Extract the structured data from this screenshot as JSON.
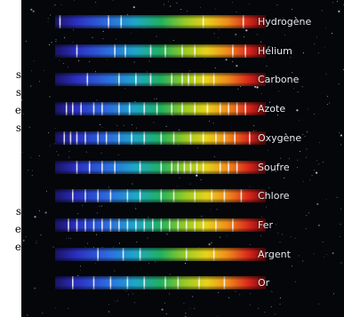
{
  "left_fragments": [
    "s",
    "s",
    "e",
    "s",
    "s",
    "e",
    "e"
  ],
  "spectra": [
    {
      "label": "Hydrogène",
      "lines": [
        0.02,
        0.25,
        0.31,
        0.7,
        0.89
      ]
    },
    {
      "label": "Hélium",
      "lines": [
        0.1,
        0.28,
        0.33,
        0.45,
        0.52,
        0.6,
        0.66,
        0.84,
        0.9
      ]
    },
    {
      "label": "Carbone",
      "lines": [
        0.15,
        0.3,
        0.38,
        0.45,
        0.55,
        0.6,
        0.63,
        0.66,
        0.7,
        0.75
      ]
    },
    {
      "label": "Azote",
      "lines": [
        0.05,
        0.08,
        0.12,
        0.18,
        0.22,
        0.3,
        0.35,
        0.42,
        0.48,
        0.55,
        0.6,
        0.66,
        0.72,
        0.78,
        0.82,
        0.86,
        0.9
      ]
    },
    {
      "label": "Oxygène",
      "lines": [
        0.04,
        0.07,
        0.1,
        0.14,
        0.2,
        0.24,
        0.3,
        0.36,
        0.42,
        0.5,
        0.56,
        0.64,
        0.7,
        0.76,
        0.8,
        0.85,
        0.92
      ]
    },
    {
      "label": "Soufre",
      "lines": [
        0.1,
        0.16,
        0.22,
        0.28,
        0.4,
        0.5,
        0.55,
        0.58,
        0.61,
        0.64,
        0.67,
        0.7,
        0.78,
        0.82,
        0.86
      ]
    },
    {
      "label": "Chlore",
      "lines": [
        0.08,
        0.14,
        0.2,
        0.26,
        0.34,
        0.4,
        0.5,
        0.56,
        0.66,
        0.74,
        0.8,
        0.88
      ]
    },
    {
      "label": "Fer",
      "lines": [
        0.06,
        0.1,
        0.14,
        0.18,
        0.22,
        0.26,
        0.3,
        0.34,
        0.38,
        0.42,
        0.46,
        0.5,
        0.54,
        0.58,
        0.62,
        0.66,
        0.7,
        0.76,
        0.84
      ]
    },
    {
      "label": "Argent",
      "lines": [
        0.2,
        0.32,
        0.4,
        0.62,
        0.75
      ]
    },
    {
      "label": "Or",
      "lines": [
        0.08,
        0.18,
        0.26,
        0.34,
        0.42,
        0.52,
        0.58,
        0.68,
        0.8
      ]
    }
  ],
  "colors": {
    "background": "#04060a",
    "label": "#e8ecf2",
    "page": "#ffffff"
  }
}
